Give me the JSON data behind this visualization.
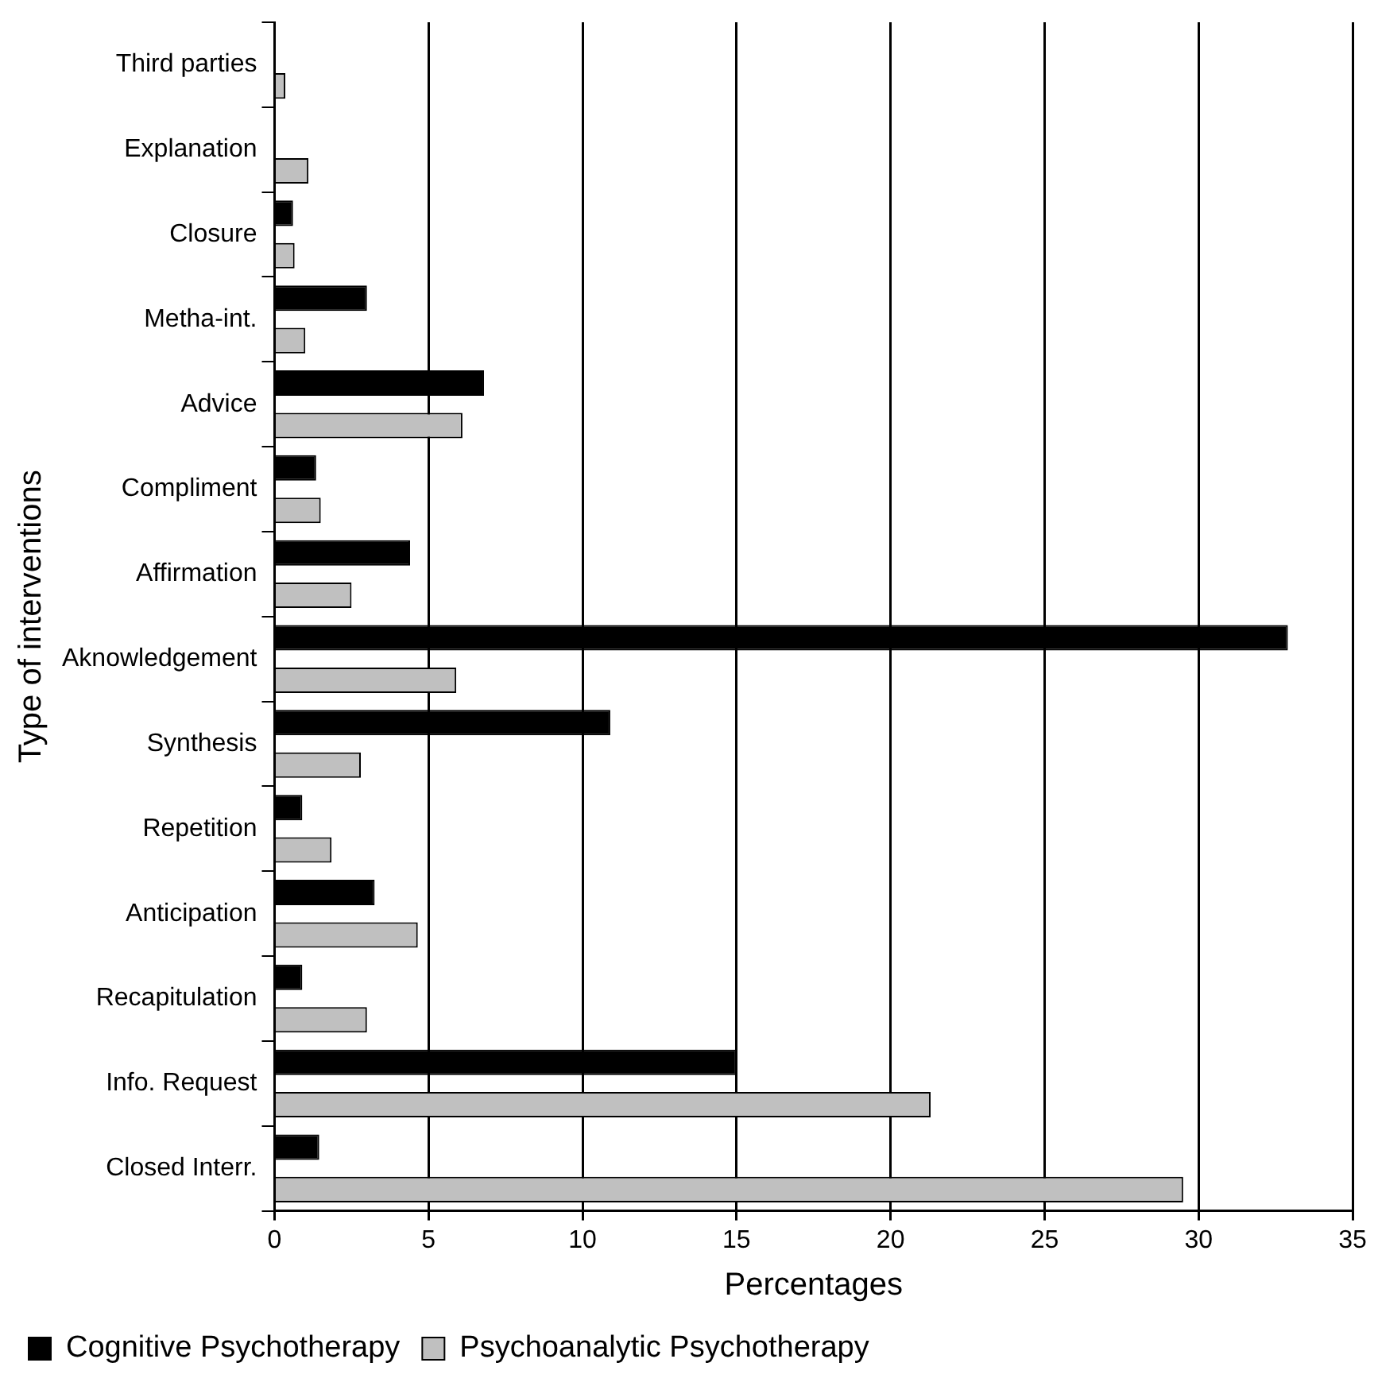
{
  "chart_data": {
    "type": "bar",
    "orientation": "horizontal",
    "xlabel": "Percentages",
    "ylabel": "Type of interventions",
    "categories": [
      "Third parties",
      "Explanation",
      "Closure",
      "Metha-int.",
      "Advice",
      "Compliment",
      "Affirmation",
      "Aknowledgement",
      "Synthesis",
      "Repetition",
      "Anticipation",
      "Recapitulation",
      "Info. Request",
      "Closed Interr."
    ],
    "series": [
      {
        "name": "Cognitive Psychotherapy",
        "color": "#000000",
        "values": [
          0,
          0,
          0.6,
          3.0,
          6.8,
          1.35,
          4.4,
          32.9,
          10.9,
          0.9,
          3.25,
          0.9,
          15.0,
          1.45
        ]
      },
      {
        "name": "Psychoanalytic Psychotherapy",
        "color": "#c0c0c0",
        "values": [
          0.35,
          1.1,
          0.65,
          1.0,
          6.1,
          1.5,
          2.5,
          5.9,
          2.8,
          1.85,
          4.65,
          3.0,
          21.3,
          29.5
        ]
      }
    ],
    "xlim": [
      0,
      35
    ],
    "xticks": [
      0,
      5,
      10,
      15,
      20,
      25,
      30,
      35
    ],
    "grid": "x",
    "legend": "bottom left"
  }
}
